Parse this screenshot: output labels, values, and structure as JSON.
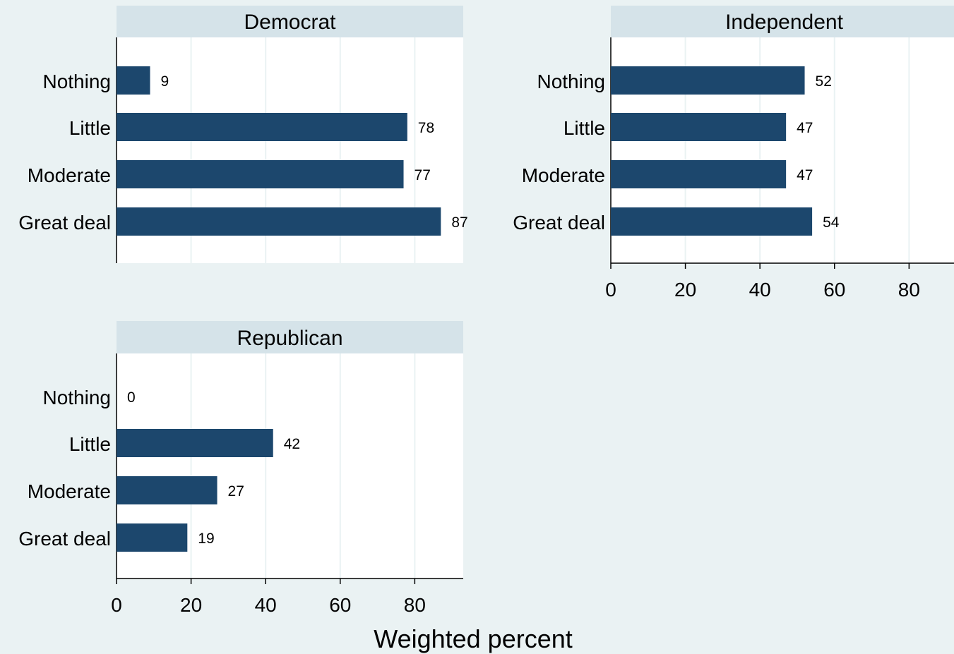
{
  "chart_data": {
    "type": "bar",
    "orientation": "horizontal",
    "xlabel": "Weighted percent",
    "categories": [
      "Nothing",
      "Little",
      "Moderate",
      "Great deal"
    ],
    "xlim": [
      0,
      93
    ],
    "xticks": [
      0,
      20,
      40,
      60,
      80
    ],
    "grid": true,
    "legend": "none",
    "colors": {
      "bar": "#1c476d",
      "plot_background": "#ffffff",
      "page_background": "#eaf2f3",
      "strip_background": "#d5e3e9",
      "grid": "#eaf2f3"
    },
    "panels": [
      {
        "title": "Democrat",
        "values": [
          9,
          78,
          77,
          87
        ],
        "labels": [
          "9",
          "78",
          "77",
          "87"
        ],
        "show_x_axis": false
      },
      {
        "title": "Independent",
        "values": [
          52,
          47,
          47,
          54
        ],
        "labels": [
          "52",
          "47",
          "47",
          "54"
        ],
        "show_x_axis": true
      },
      {
        "title": "Republican",
        "values": [
          0,
          42,
          27,
          19
        ],
        "labels": [
          "0",
          "42",
          "27",
          "19"
        ],
        "show_x_axis": true
      }
    ]
  }
}
